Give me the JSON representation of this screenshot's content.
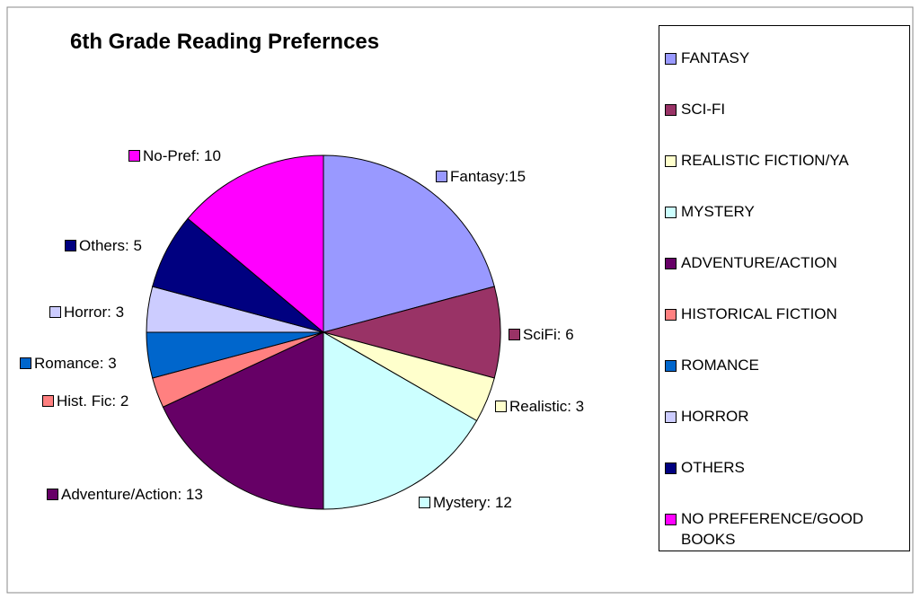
{
  "chart_data": {
    "type": "pie",
    "title": "6th Grade Reading Prefernces",
    "categories": [
      "FANTASY",
      "SCI-FI",
      "REALISTIC FICTION/YA",
      "MYSTERY",
      "ADVENTURE/ACTION",
      "HISTORICAL FICTION",
      "ROMANCE",
      "HORROR",
      "OTHERS",
      "NO PREFERENCE/GOOD BOOKS"
    ],
    "values": [
      15,
      6,
      3,
      12,
      13,
      2,
      3,
      3,
      5,
      10
    ],
    "value_labels": [
      "Fantasy:15",
      "SciFi: 6",
      "Realistic: 3",
      "Mystery: 12",
      "Adventure/Action: 13",
      "Hist. Fic: 2",
      "Romance: 3",
      "Horror: 3",
      "Others: 5",
      "No-Pref: 10"
    ],
    "colors": [
      "#9999ff",
      "#993366",
      "#ffffcc",
      "#ccffff",
      "#660066",
      "#ff8080",
      "#0066cc",
      "#ccccff",
      "#000080",
      "#ff00ff"
    ],
    "legend": "right"
  }
}
